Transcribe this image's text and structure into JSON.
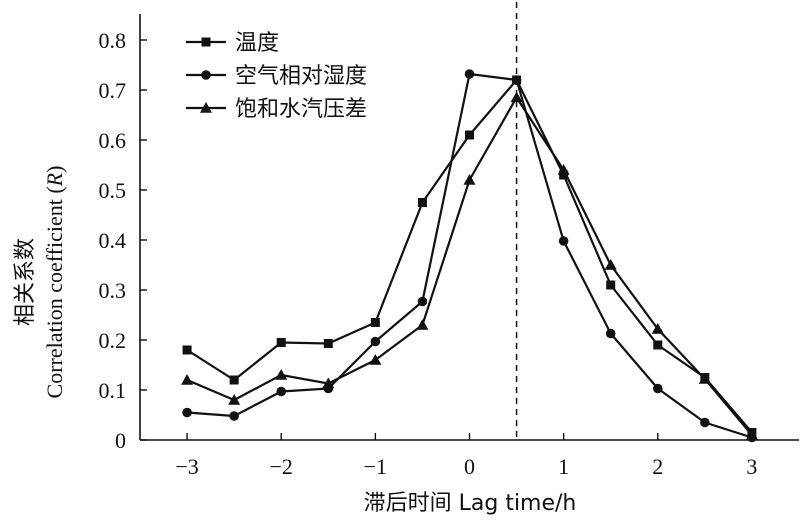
{
  "chart_data": {
    "type": "line",
    "xlabel": "滞后时间 Lag time/h",
    "ylabel_cn": "相关系数",
    "ylabel_en_prefix": "Correlation coefficient (",
    "ylabel_en_var": "R",
    "ylabel_en_suffix": ")",
    "xlim": [
      -3.5,
      3.5
    ],
    "ylim": [
      0,
      0.8
    ],
    "x_ticks": [
      -3,
      -2,
      -1,
      0,
      1,
      2,
      3
    ],
    "x_tick_labels": [
      "−3",
      "−2",
      "−1",
      "0",
      "1",
      "2",
      "3"
    ],
    "y_ticks": [
      0,
      0.1,
      0.2,
      0.3,
      0.4,
      0.5,
      0.6,
      0.7,
      0.8
    ],
    "y_tick_labels": [
      "0",
      "0.1",
      "0.2",
      "0.3",
      "0.4",
      "0.5",
      "0.6",
      "0.7",
      "0.8"
    ],
    "reference_line_x": 0.5,
    "x": [
      -3,
      -2.5,
      -2,
      -1.5,
      -1,
      -0.5,
      0,
      0.5,
      1,
      1.5,
      2,
      2.5,
      3
    ],
    "series": [
      {
        "name": "温度",
        "marker": "square",
        "values": [
          0.18,
          0.12,
          0.195,
          0.193,
          0.235,
          0.475,
          0.61,
          0.72,
          0.53,
          0.31,
          0.19,
          0.125,
          0.015
        ]
      },
      {
        "name": "空气相对湿度",
        "marker": "circle",
        "values": [
          0.055,
          0.048,
          0.097,
          0.103,
          0.197,
          0.277,
          0.732,
          0.72,
          0.398,
          0.213,
          0.103,
          0.035,
          0.005
        ]
      },
      {
        "name": "饱和水汽压差",
        "marker": "triangle",
        "values": [
          0.12,
          0.08,
          0.13,
          0.113,
          0.16,
          0.23,
          0.52,
          0.685,
          0.54,
          0.35,
          0.222,
          0.122,
          0.01
        ]
      }
    ],
    "legend_position": "top-left",
    "line_color": "#111111"
  }
}
